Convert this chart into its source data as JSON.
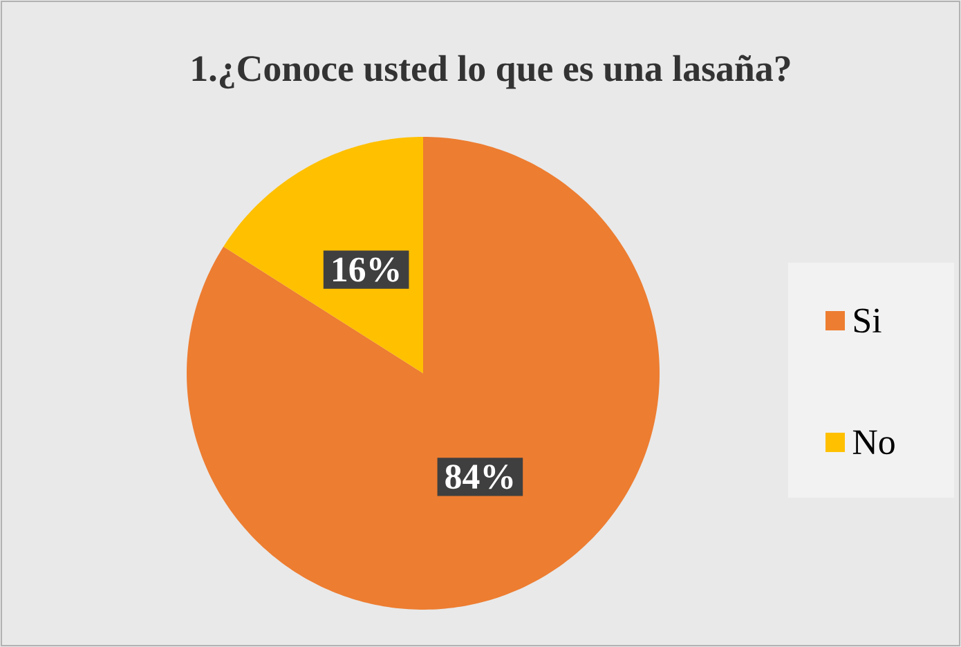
{
  "chart_data": {
    "type": "pie",
    "title": "1.¿Conoce usted lo que es una lasaña?",
    "categories": [
      "Si",
      "No"
    ],
    "values": [
      84,
      16
    ],
    "colors": [
      "#ed7d31",
      "#ffc000"
    ],
    "value_labels": [
      "84%",
      "16%"
    ],
    "legend": "right"
  }
}
